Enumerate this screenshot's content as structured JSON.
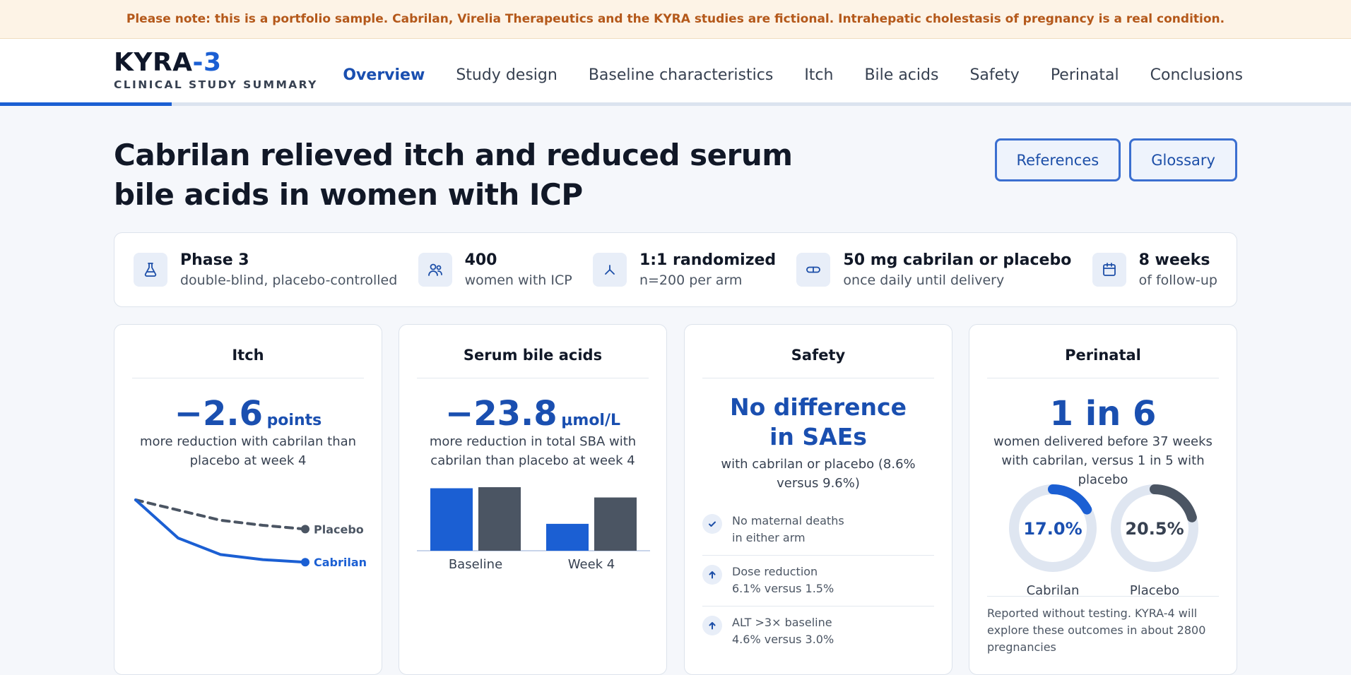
{
  "banner": "Please note: this is a portfolio sample. Cabrilan, Virelia Therapeutics and the KYRA studies are fictional. Intrahepatic cholestasis of pregnancy is a real condition.",
  "brand": {
    "name": "KYRA",
    "accent": "-3",
    "subtitle": "CLINICAL STUDY SUMMARY"
  },
  "nav": [
    {
      "label": "Overview",
      "active": true
    },
    {
      "label": "Study design"
    },
    {
      "label": "Baseline characteristics"
    },
    {
      "label": "Itch"
    },
    {
      "label": "Bile acids"
    },
    {
      "label": "Safety"
    },
    {
      "label": "Perinatal"
    },
    {
      "label": "Conclusions"
    }
  ],
  "reading_progress": 0.127,
  "title": "Cabrilan relieved itch and reduced serum bile acids in women with ICP",
  "buttons": {
    "references": "References",
    "glossary": "Glossary"
  },
  "facts": [
    {
      "icon": "flask-icon",
      "main": "Phase 3",
      "sub": "double-blind, placebo-controlled"
    },
    {
      "icon": "people-icon",
      "main": "400",
      "sub": "women with ICP"
    },
    {
      "icon": "split-icon",
      "main": "1:1 randomized",
      "sub": "n=200 per arm"
    },
    {
      "icon": "pill-icon",
      "main": "50 mg cabrilan or placebo",
      "sub": "once daily until delivery"
    },
    {
      "icon": "calendar-icon",
      "main": "8 weeks",
      "sub": "of follow-up"
    }
  ],
  "itch": {
    "title": "Itch",
    "value": "−2.6",
    "unit": "points",
    "desc": "more reduction with cabrilan than placebo at week 4",
    "chart": {
      "type": "line",
      "x": [
        0,
        1,
        2,
        3,
        4
      ],
      "series": [
        {
          "name": "Placebo",
          "values": [
            0,
            -0.8,
            -1.6,
            -2.0,
            -2.3
          ],
          "color": "#4b5563"
        },
        {
          "name": "Cabrilan",
          "values": [
            0,
            -3.0,
            -4.3,
            -4.7,
            -4.9
          ],
          "color": "#1b5fd3"
        }
      ]
    }
  },
  "bile": {
    "title": "Serum bile acids",
    "value": "−23.8",
    "unit": "μmol/L",
    "desc": "more reduction in total SBA with cabrilan than placebo at week 4",
    "chart": {
      "type": "bar",
      "categories": [
        "Baseline",
        "Week 4"
      ],
      "series": [
        {
          "name": "Cabrilan",
          "values": [
            59.0,
            25.4
          ],
          "color": "#1b5fd3"
        },
        {
          "name": "Placebo",
          "values": [
            60.0,
            50.3
          ],
          "color": "#4b5563"
        }
      ]
    }
  },
  "safety": {
    "title": "Safety",
    "headline_1": "No difference",
    "headline_2": "in SAEs",
    "desc": "with cabrilan or placebo (8.6% versus 9.6%)",
    "items": [
      {
        "icon": "check-icon",
        "line1": "No maternal deaths",
        "line2": "in either arm"
      },
      {
        "icon": "arrow-up-icon",
        "line1": "Dose reduction",
        "line2": "6.1% versus 1.5%"
      },
      {
        "icon": "arrow-up-icon",
        "line1": "ALT >3× baseline",
        "line2": "4.6% versus 3.0%"
      }
    ]
  },
  "perinatal": {
    "title": "Perinatal",
    "value": "1 in 6",
    "desc": "women delivered before 37 weeks with cabrilan, versus 1 in 5 with placebo",
    "chart": {
      "type": "pie",
      "series": [
        {
          "name": "Cabrilan",
          "label": "17.0%",
          "value": 17.0,
          "color": "#1b5fd3"
        },
        {
          "name": "Placebo",
          "label": "20.5%",
          "value": 20.5,
          "color": "#4b5563"
        }
      ]
    },
    "note": "Reported without testing. KYRA-4 will explore these outcomes in about 2800 pregnancies"
  }
}
